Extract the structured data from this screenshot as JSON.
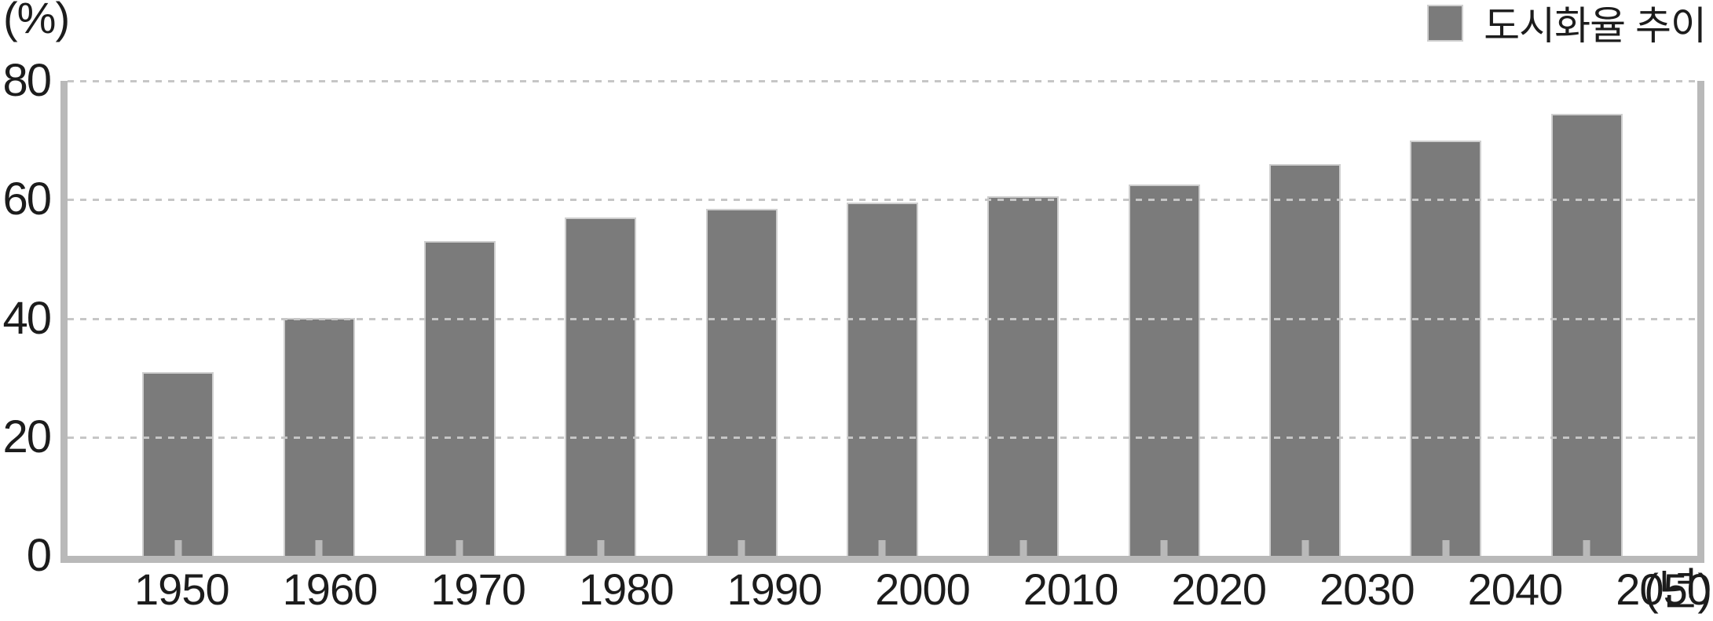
{
  "chart_data": {
    "type": "bar",
    "title": "",
    "categories": [
      "1950",
      "1960",
      "1970",
      "1980",
      "1990",
      "2000",
      "2010",
      "2020",
      "2030",
      "2040",
      "2050"
    ],
    "series": [
      {
        "name": "도시화율 추이",
        "values": [
          31,
          40,
          53,
          57,
          58.5,
          59.5,
          60.5,
          62.5,
          66,
          70,
          74.5
        ]
      }
    ],
    "ylabel_unit": "(%)",
    "xlabel_unit": "(년)",
    "ylim": [
      0,
      80
    ],
    "yticks": [
      80,
      60,
      40,
      20,
      0
    ],
    "grid": "horizontal-dashed",
    "legend_position": "top-right"
  },
  "legend": {
    "label": "도시화율 추이"
  },
  "colors": {
    "bar": "#7b7b7b",
    "bar_edge": "#cfcfcf",
    "axis": "#b9b9b9",
    "grid": "#c6c6c6",
    "text": "#1c1c1c",
    "background": "#ffffff"
  }
}
